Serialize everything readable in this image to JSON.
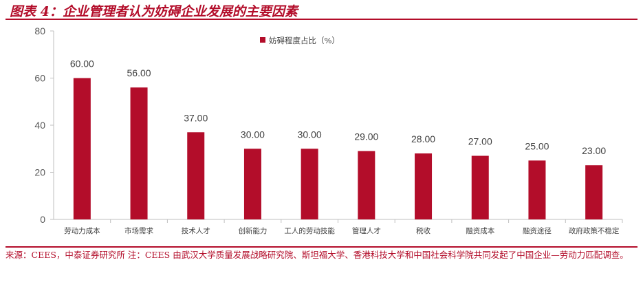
{
  "title": "图表 4：企业管理者认为妨碍企业发展的主要因素",
  "source_note": "来源：CEES，中泰证券研究所 注：CEES 由武汉大学质量发展战略研究院、斯坦福大学、香港科技大学和中国社会科学院共同发起了中国企业—劳动力匹配调查。",
  "colors": {
    "bar": "#b30d2a",
    "accent": "#b30d2a",
    "axis": "#bfbfbf"
  },
  "chart_data": {
    "type": "bar",
    "title": "",
    "xlabel": "",
    "ylabel": "",
    "categories": [
      "劳动力成本",
      "市场需求",
      "技术人才",
      "创新能力",
      "工人的劳动技能",
      "管理人才",
      "税收",
      "融资成本",
      "融资途径",
      "政府政策不稳定"
    ],
    "series": [
      {
        "name": "妨碍程度占比（%）",
        "values": [
          60,
          56,
          37,
          30,
          30,
          29,
          28,
          27,
          25,
          23
        ]
      }
    ],
    "value_labels": [
      "60.00",
      "56.00",
      "37.00",
      "30.00",
      "30.00",
      "29.00",
      "28.00",
      "27.00",
      "25.00",
      "23.00"
    ],
    "ylim": [
      0,
      80
    ],
    "yticks": [
      0,
      20,
      40,
      60,
      80
    ],
    "grid": false,
    "legend_position": "top-center"
  }
}
